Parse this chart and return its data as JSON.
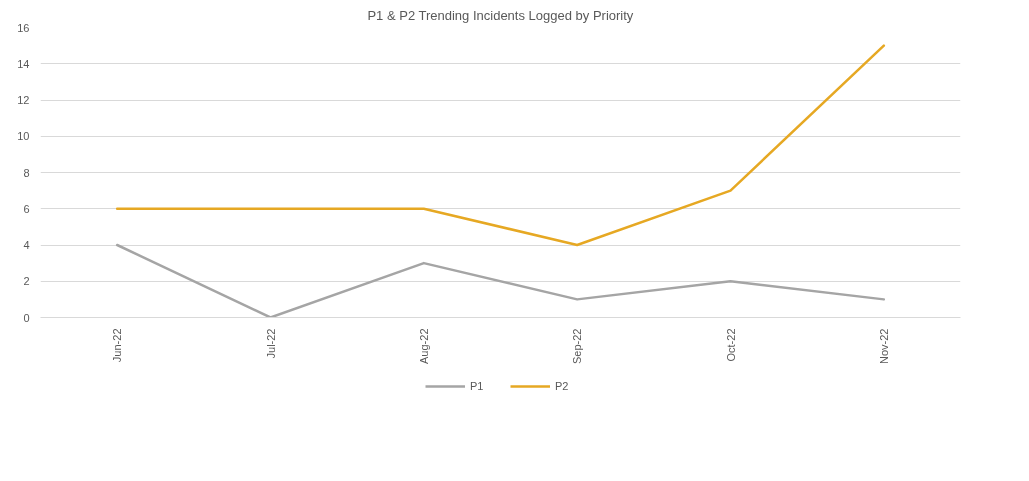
{
  "chart_data": {
    "type": "line",
    "title": "P1 & P2 Trending Incidents Logged by Priority",
    "categories": [
      "Jun-22",
      "Jul-22",
      "Aug-22",
      "Sep-22",
      "Oct-22",
      "Nov-22"
    ],
    "series": [
      {
        "name": "P1",
        "color": "#a5a5a5",
        "values": [
          4,
          0,
          3,
          1,
          2,
          1
        ]
      },
      {
        "name": "P2",
        "color": "#e6a823",
        "values": [
          6,
          6,
          6,
          4,
          7,
          15
        ]
      }
    ],
    "ylim": [
      0,
      16
    ],
    "yticks": [
      0,
      2,
      4,
      6,
      8,
      10,
      12,
      14,
      16
    ],
    "grid": "y",
    "legend": "bottom",
    "marker": "none",
    "line_style": "solid"
  }
}
